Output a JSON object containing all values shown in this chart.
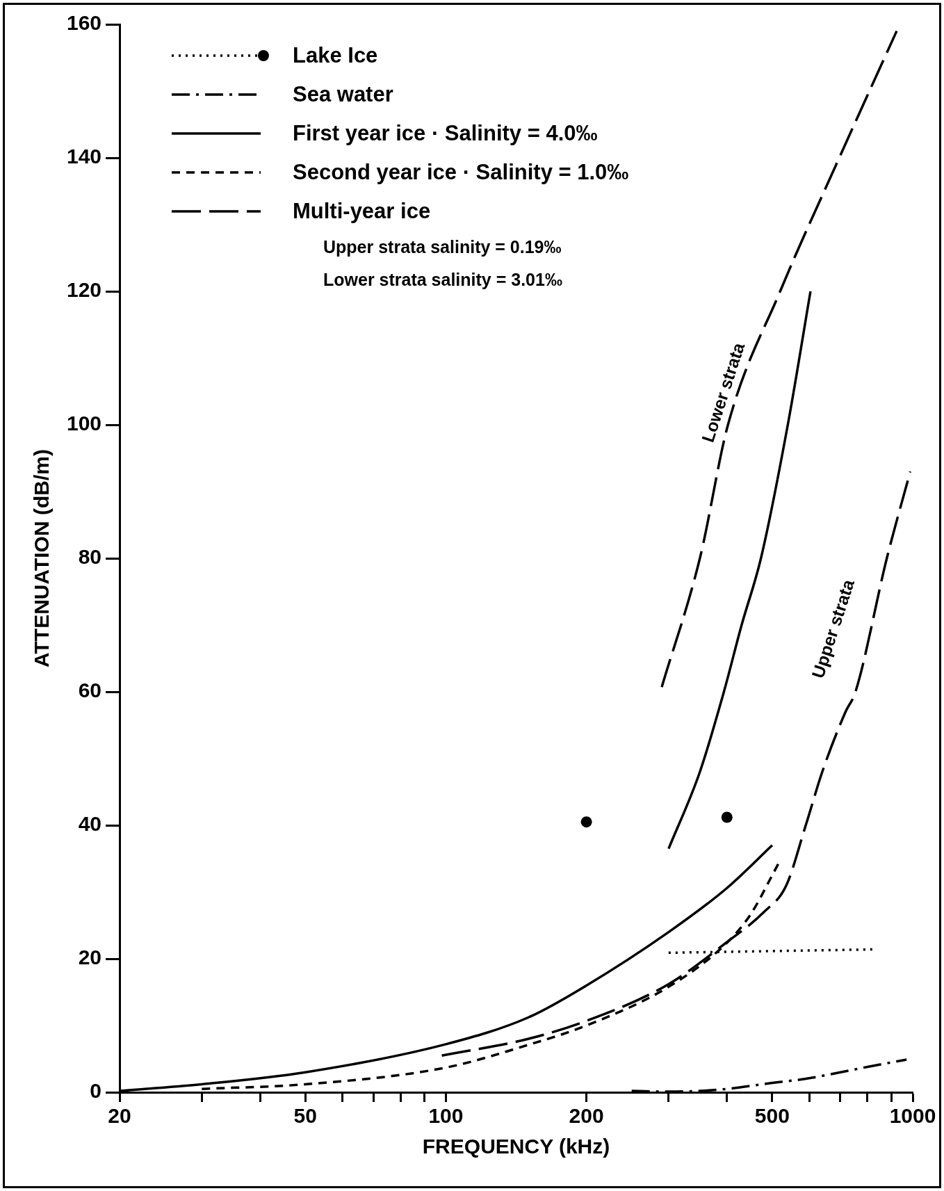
{
  "chart_data": {
    "type": "line",
    "xlabel": "FREQUENCY (kHz)",
    "ylabel": "ATTENUATION (dB/m)",
    "log": "x",
    "xlim": [
      20,
      1000
    ],
    "ylim": [
      0,
      160
    ],
    "xticks": [
      20,
      {
        "value": 30,
        "label": null
      },
      {
        "value": 40,
        "label": null
      },
      50,
      {
        "value": 60,
        "label": null
      },
      {
        "value": 70,
        "label": null
      },
      {
        "value": 80,
        "label": null
      },
      {
        "value": 90,
        "label": null
      },
      100,
      200,
      {
        "value": 300,
        "label": null
      },
      {
        "value": 400,
        "label": null
      },
      500,
      {
        "value": 600,
        "label": null
      },
      {
        "value": 700,
        "label": null
      },
      {
        "value": 800,
        "label": null
      },
      {
        "value": 900,
        "label": null
      },
      1000
    ],
    "yticks": [
      0,
      20,
      40,
      60,
      80,
      100,
      120,
      140,
      160
    ],
    "legend": "top left",
    "series": [
      {
        "name": "Lake Ice",
        "type": "scatter",
        "marker": "circle",
        "line_style": "dotted",
        "color": "#000000",
        "x": [
          200,
          400
        ],
        "values": [
          40.5,
          41.2
        ]
      },
      {
        "line_style": "dotted",
        "color": "#000000",
        "x": [
          300,
          820
        ],
        "values": [
          20.9,
          21.4
        ]
      },
      {
        "name": "Sea water",
        "line_style": "dashdot",
        "color": "#000000",
        "x": [
          250,
          300,
          350,
          400,
          500,
          600,
          700,
          800,
          970
        ],
        "values": [
          0.2,
          0.1,
          0.2,
          0.5,
          1.4,
          2.1,
          3.0,
          3.8,
          4.9
        ]
      },
      {
        "name": "First year ice · Salinity = 4.0‰",
        "line_style": "solid",
        "color": "#000000",
        "x": [
          20,
          30,
          50,
          100,
          150,
          200,
          300,
          400,
          500
        ],
        "values": [
          0.2,
          1.2,
          3,
          7.2,
          11.2,
          16,
          24,
          30.6,
          37
        ]
      },
      {
        "line_style": "solid",
        "color": "#000000",
        "x": [
          300,
          350,
          394,
          430,
          473,
          540,
          604
        ],
        "values": [
          36.5,
          48,
          60,
          70,
          80,
          100,
          120
        ]
      },
      {
        "name": "Second year ice · Salinity = 1.0‰",
        "line_style": "dashed",
        "color": "#000000",
        "x": [
          30,
          50,
          100,
          150,
          200,
          300,
          400,
          450,
          500,
          515
        ],
        "values": [
          0.5,
          1.2,
          3.7,
          7.1,
          10,
          15.8,
          22.4,
          26.7,
          32.5,
          34.2
        ]
      },
      {
        "name": "Multi-year ice",
        "line_style": "longdash",
        "color": "#000000",
        "x": [
          98,
          150,
          200,
          300,
          400,
          480,
          536,
          590,
          640,
          718,
          754,
          880,
          988
        ],
        "values": [
          5.5,
          8,
          10.7,
          16.2,
          22.5,
          27,
          31,
          40,
          48,
          57,
          60,
          80,
          93
        ]
      },
      {
        "line_style": "longdash",
        "color": "#000000",
        "x": [
          290,
          350,
          402,
          520,
          696,
          924
        ],
        "values": [
          60.7,
          80,
          100,
          120,
          140,
          159
        ]
      }
    ],
    "annotations": [
      "Upper strata salinity = 0.19‰",
      "Lower strata salinity = 3.01‰",
      "Lower strata",
      "Upper strata"
    ]
  }
}
